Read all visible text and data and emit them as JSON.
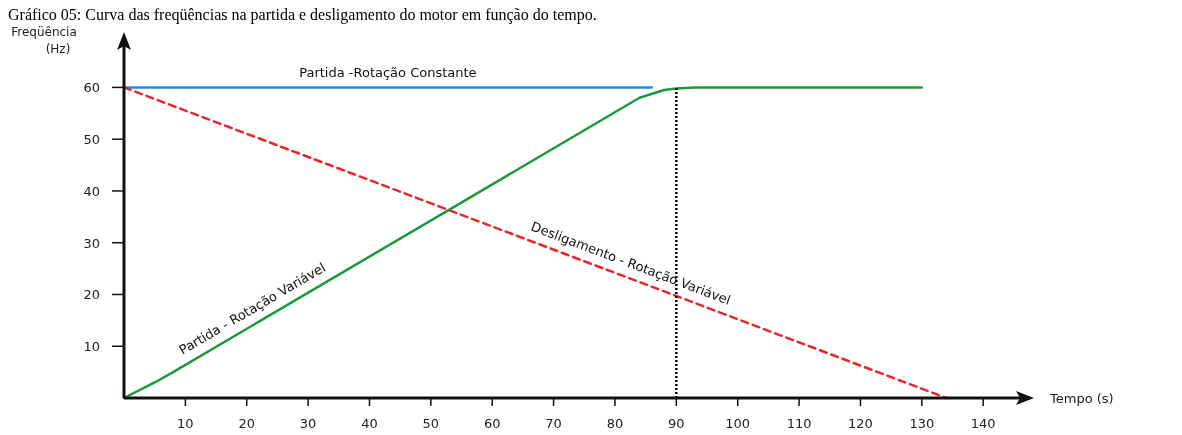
{
  "chart_data": {
    "type": "line",
    "title": "Gráfico 05: Curva das freqüências na partida e desligamento do motor em função do tempo.",
    "xlabel": "Tempo (s)",
    "ylabel": "Freqüência (Hz)",
    "xlim": [
      0,
      146
    ],
    "ylim": [
      0,
      68
    ],
    "xticks": [
      10,
      20,
      30,
      40,
      50,
      60,
      70,
      80,
      90,
      100,
      110,
      120,
      130,
      140
    ],
    "yticks": [
      10,
      20,
      30,
      40,
      50,
      60
    ],
    "grid": false,
    "marker": "none",
    "series": [
      {
        "name": "Partida -Rotação Constante",
        "color": "#1e90e0",
        "line_style": "solid",
        "x": [
          0,
          86
        ],
        "values": [
          60,
          60
        ]
      },
      {
        "name": "Partida - Rotação Variável",
        "color": "#1a9a3a",
        "line_style": "solid",
        "x": [
          0,
          5,
          8,
          84,
          88,
          90,
          93,
          130
        ],
        "values": [
          0,
          3,
          5,
          58,
          59.5,
          59.8,
          60,
          60
        ]
      },
      {
        "name": "Desligamento - Rotação Variável",
        "color": "#e8262a",
        "line_style": "dashed",
        "x": [
          0,
          134
        ],
        "values": [
          60,
          0
        ]
      }
    ],
    "ref_lines": [
      {
        "axis": "x",
        "value": 90,
        "color": "#000000",
        "line_style": "dotted"
      }
    ]
  }
}
